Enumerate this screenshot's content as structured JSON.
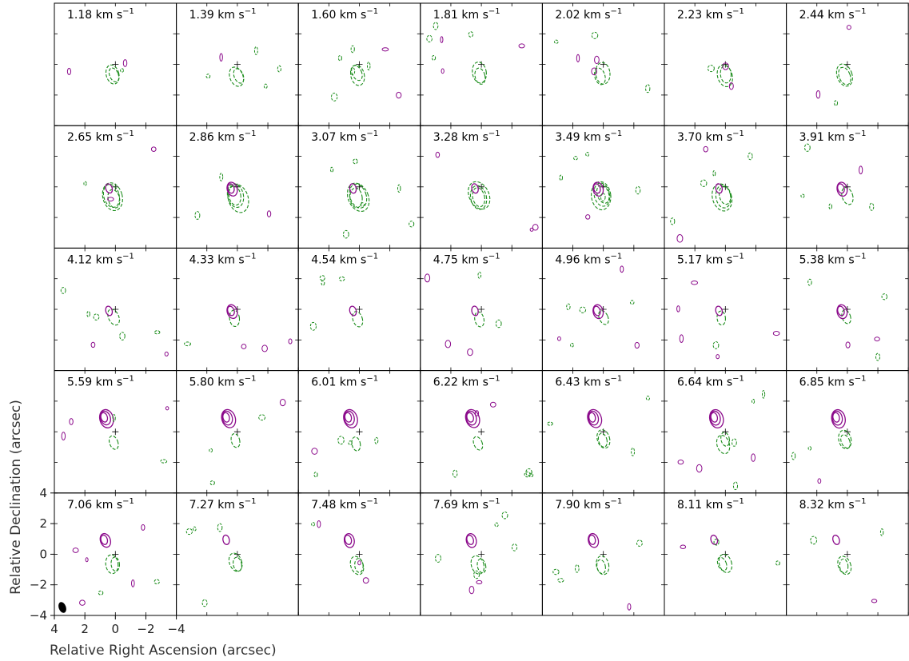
{
  "chart_data": {
    "type": "contour",
    "layout": {
      "rows": 5,
      "columns": 7
    },
    "panels": [
      "1.18 km s",
      "1.39 km s",
      "1.60 km s",
      "1.81 km s",
      "2.02 km s",
      "2.23 km s",
      "2.44 km s",
      "2.65 km s",
      "2.86 km s",
      "3.07 km s",
      "3.28 km s",
      "3.49 km s",
      "3.70 km s",
      "3.91 km s",
      "4.12 km s",
      "4.33 km s",
      "4.54 km s",
      "4.75 km s",
      "4.96 km s",
      "5.17 km s",
      "5.38 km s",
      "5.59 km s",
      "5.80 km s",
      "6.01 km s",
      "6.22 km s",
      "6.43 km s",
      "6.64 km s",
      "6.85 km s",
      "7.06 km s",
      "7.27 km s",
      "7.48 km s",
      "7.69 km s",
      "7.90 km s",
      "8.11 km s",
      "8.32 km s"
    ],
    "label_superscript": "−1",
    "xlabel": "Relative Right Ascension (arcsec)",
    "ylabel": "Relative Declination (arcsec)",
    "xlim": [
      4,
      -4
    ],
    "ylim": [
      -4,
      4
    ],
    "xticks": [
      4,
      2,
      0,
      -2,
      -4
    ],
    "yticks": [
      4,
      2,
      0,
      -2,
      -4
    ],
    "xtick_labels": [
      "4",
      "2",
      "0",
      "−2",
      "−4"
    ],
    "yticks_labels": [
      "4",
      "2",
      "0",
      "−2",
      "−4"
    ],
    "series": [
      {
        "color": "#1a8c1a",
        "linestyle": "dashed"
      },
      {
        "color": "#8b0a8b",
        "linestyle": "solid"
      }
    ],
    "beam": {
      "color": "#000000"
    },
    "center_marker": {
      "x": 0,
      "y": 0
    }
  }
}
